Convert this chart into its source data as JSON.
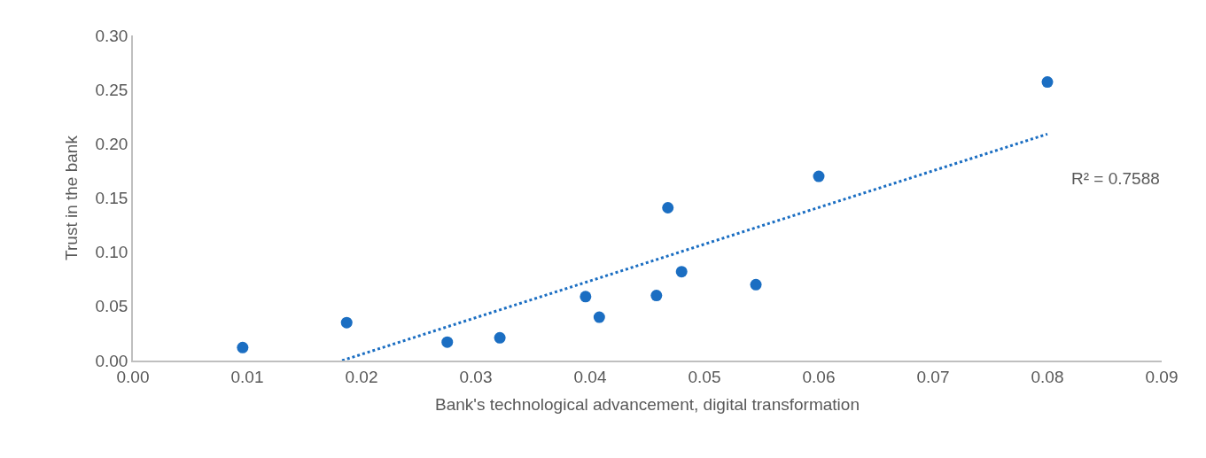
{
  "chart_data": {
    "type": "scatter",
    "xlabel": "Bank's technological advancement, digital transformation",
    "ylabel": "Trust in the bank",
    "x": [
      0.0096,
      0.0187,
      0.0275,
      0.0321,
      0.0396,
      0.0408,
      0.0458,
      0.0468,
      0.048,
      0.0545,
      0.06,
      0.08
    ],
    "series": [
      {
        "color": "#1b6ec2",
        "marker": "circle",
        "values": [
          0.012,
          0.035,
          0.017,
          0.021,
          0.059,
          0.04,
          0.06,
          0.141,
          0.082,
          0.07,
          0.17,
          0.257
        ]
      },
      {
        "type": "line",
        "color": "#1b6ec2",
        "line_style": "dotted",
        "marker": "none",
        "x": [
          0.0183,
          0.08
        ],
        "values": [
          0,
          0.209
        ]
      }
    ],
    "annotations": [
      "R² = 0.7588"
    ],
    "xlim": [
      0,
      0.09
    ],
    "xticks": [
      {
        "value": 0,
        "label": "0.00"
      },
      {
        "value": 0.01,
        "label": "0.01"
      },
      {
        "value": 0.02,
        "label": "0.02"
      },
      {
        "value": 0.03,
        "label": "0.03"
      },
      {
        "value": 0.04,
        "label": "0.04"
      },
      {
        "value": 0.05,
        "label": "0.05"
      },
      {
        "value": 0.06,
        "label": "0.06"
      },
      {
        "value": 0.07,
        "label": "0.07"
      },
      {
        "value": 0.08,
        "label": "0.08"
      },
      {
        "value": 0.09,
        "label": "0.09"
      }
    ],
    "ylim": [
      0,
      0.3
    ],
    "yticks": [
      {
        "value": 0,
        "label": "0.00"
      },
      {
        "value": 0.05,
        "label": "0.05"
      },
      {
        "value": 0.1,
        "label": "0.10"
      },
      {
        "value": 0.15,
        "label": "0.15"
      },
      {
        "value": 0.2,
        "label": "0.20"
      },
      {
        "value": 0.25,
        "label": "0.25"
      },
      {
        "value": 0.3,
        "label": "0.30"
      }
    ]
  }
}
